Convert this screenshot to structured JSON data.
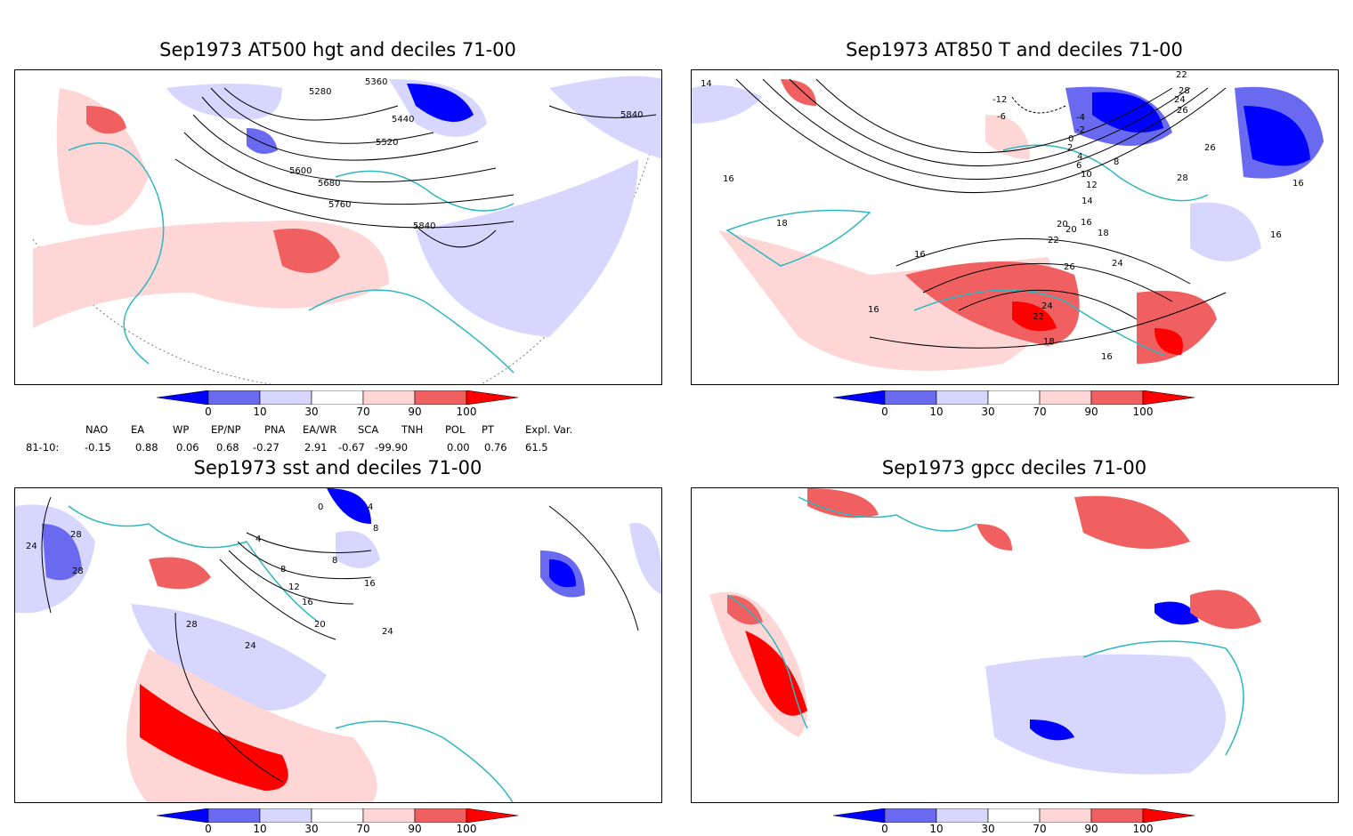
{
  "panels": [
    {
      "title": "Sep1973 AT500 hgt and deciles 71-00",
      "contour_labels": [
        "5280",
        "5360",
        "5440",
        "5520",
        "5600",
        "5680",
        "5760",
        "5840",
        "5840"
      ]
    },
    {
      "title": "Sep1973 AT850 T and deciles 71-00",
      "contour_labels": [
        "14",
        "16",
        "16",
        "16",
        "16",
        "16",
        "16",
        "18",
        "18",
        "18",
        "20",
        "22",
        "22",
        "24",
        "24",
        "26",
        "26",
        "28",
        "-12",
        "-6",
        "-4",
        "-2",
        "0",
        "2",
        "4",
        "6",
        "8",
        "10",
        "12",
        "14",
        "16",
        "20",
        "22",
        "24",
        "26",
        "28"
      ]
    },
    {
      "title": "Sep1973 sst and deciles 71-00",
      "contour_labels": [
        "24",
        "28",
        "28",
        "28",
        "24",
        "4",
        "8",
        "12",
        "16",
        "20",
        "24",
        "16",
        "8",
        "4",
        "8",
        "0"
      ]
    },
    {
      "title": "Sep1973 gpcc deciles 71-00",
      "contour_labels": []
    }
  ],
  "colorbar": {
    "ticks": [
      "0",
      "10",
      "30",
      "70",
      "90",
      "100"
    ],
    "colors": [
      "#0000ff",
      "#6a6af0",
      "#d6d6ff",
      "#ffffff",
      "#ffd6d6",
      "#f06060",
      "#ff0000"
    ]
  },
  "indices": {
    "headers": [
      "NAO",
      "EA",
      "WP",
      "EP/NP",
      "PNA",
      "EA/WR",
      "SCA",
      "TNH",
      "POL",
      "PT",
      "Expl. Var."
    ],
    "row_label": "81-10:",
    "values": [
      "-0.15",
      "0.88",
      "0.06",
      "0.68",
      "-0.27",
      "2.91",
      "-0.67",
      "-99.90",
      "0.00",
      "0.76",
      "61.5"
    ]
  }
}
